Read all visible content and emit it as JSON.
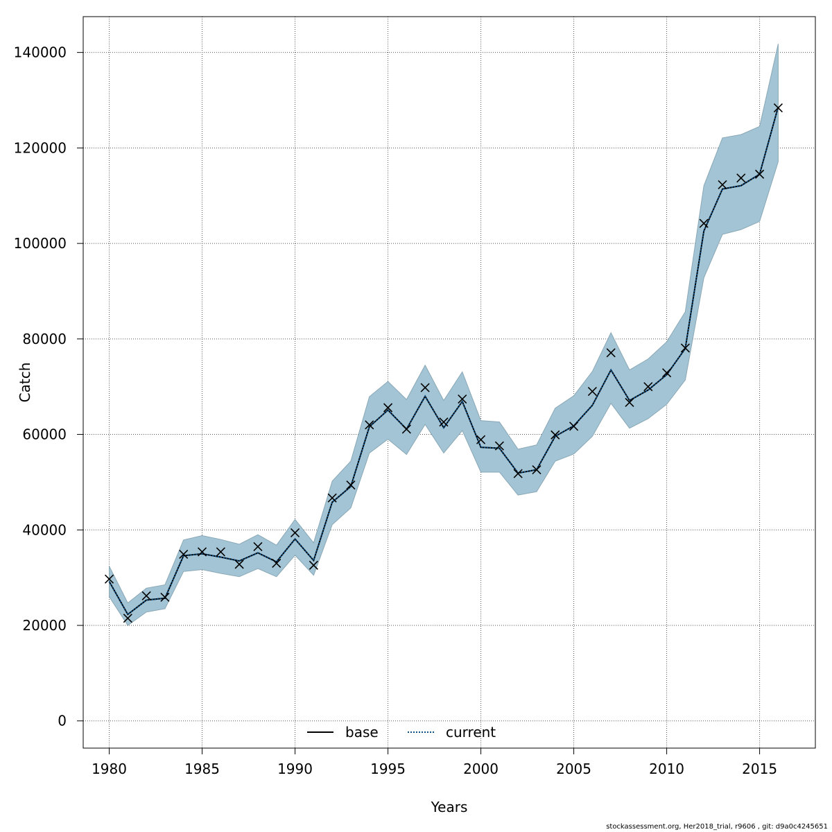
{
  "chart_data": {
    "type": "line",
    "xlabel": "Years",
    "ylabel": "Catch",
    "xlim": [
      1978.6,
      2018.0
    ],
    "ylim": [
      -5700,
      147500
    ],
    "x_ticks": [
      1980,
      1985,
      1990,
      1995,
      2000,
      2005,
      2010,
      2015
    ],
    "y_ticks": [
      0,
      20000,
      40000,
      60000,
      80000,
      100000,
      120000,
      140000
    ],
    "x_tick_labels": [
      "1980",
      "1985",
      "1990",
      "1995",
      "2000",
      "2005",
      "2010",
      "2015"
    ],
    "y_tick_labels": [
      "0",
      "20000",
      "40000",
      "60000",
      "80000",
      "100000",
      "120000",
      "140000"
    ],
    "grid": true,
    "legend_position": "bottom-center",
    "x": [
      1980,
      1981,
      1982,
      1983,
      1984,
      1985,
      1986,
      1987,
      1988,
      1989,
      1990,
      1991,
      1992,
      1993,
      1994,
      1995,
      1996,
      1997,
      1998,
      1999,
      2000,
      2001,
      2002,
      2003,
      2004,
      2005,
      2006,
      2007,
      2008,
      2009,
      2010,
      2011,
      2012,
      2013,
      2014,
      2015,
      2016
    ],
    "band": {
      "color": "#a3c4d4",
      "border": "#8aa8b6",
      "upper": [
        32400,
        24700,
        27800,
        28500,
        37900,
        38800,
        38000,
        37000,
        39000,
        36800,
        42200,
        37300,
        50200,
        54400,
        67900,
        71100,
        67300,
        74500,
        67100,
        73100,
        62900,
        62600,
        56900,
        57800,
        65500,
        68100,
        73200,
        81300,
        73500,
        75800,
        79400,
        85700,
        112100,
        122100,
        122800,
        124500,
        141800
      ],
      "lower": [
        26000,
        20000,
        22800,
        23500,
        31300,
        31700,
        30900,
        30200,
        31900,
        30200,
        34700,
        30500,
        41100,
        44600,
        56100,
        59000,
        55800,
        62100,
        56100,
        60800,
        52100,
        52100,
        47300,
        48000,
        54400,
        55900,
        59600,
        66500,
        61300,
        63300,
        66300,
        71400,
        92800,
        101900,
        102900,
        104600,
        117100
      ]
    },
    "series": [
      {
        "name": "base",
        "line_style": "solid",
        "color": "#000000",
        "values": [
          29200,
          22300,
          25300,
          25700,
          34600,
          35000,
          34300,
          33500,
          35200,
          33300,
          38100,
          33600,
          45800,
          49100,
          61600,
          65100,
          61100,
          68000,
          61400,
          66900,
          57300,
          57100,
          51900,
          52600,
          59600,
          61800,
          66100,
          73500,
          67100,
          69300,
          72500,
          78000,
          102600,
          111400,
          112100,
          114500,
          128600
        ]
      },
      {
        "name": "current",
        "line_style": "dotted",
        "color": "#0b4f86",
        "values": [
          29200,
          22300,
          25300,
          25700,
          34600,
          35000,
          34300,
          33500,
          35200,
          33300,
          38100,
          33600,
          45800,
          49100,
          61600,
          65100,
          61100,
          68000,
          61400,
          66900,
          57300,
          57100,
          51900,
          52600,
          59600,
          61800,
          66100,
          73500,
          67100,
          69300,
          72500,
          78000,
          102600,
          111400,
          112100,
          114500,
          128600
        ]
      }
    ],
    "observations": {
      "marker": "cross",
      "color": "#000000",
      "values": [
        29700,
        21500,
        26200,
        25900,
        34900,
        35400,
        35400,
        32800,
        36500,
        33000,
        39400,
        32600,
        46700,
        49400,
        62000,
        65600,
        61100,
        69800,
        62600,
        67400,
        58900,
        57600,
        51800,
        52600,
        59900,
        61700,
        69000,
        77100,
        66700,
        70000,
        72900,
        78100,
        104200,
        112300,
        113700,
        114500,
        128400
      ]
    }
  },
  "legend": {
    "items": [
      {
        "label": "base",
        "style": "solid"
      },
      {
        "label": "current",
        "style": "dotted"
      }
    ]
  },
  "footer": "stockassessment.org, Her2018_trial, r9606 , git: d9a0c4245651"
}
